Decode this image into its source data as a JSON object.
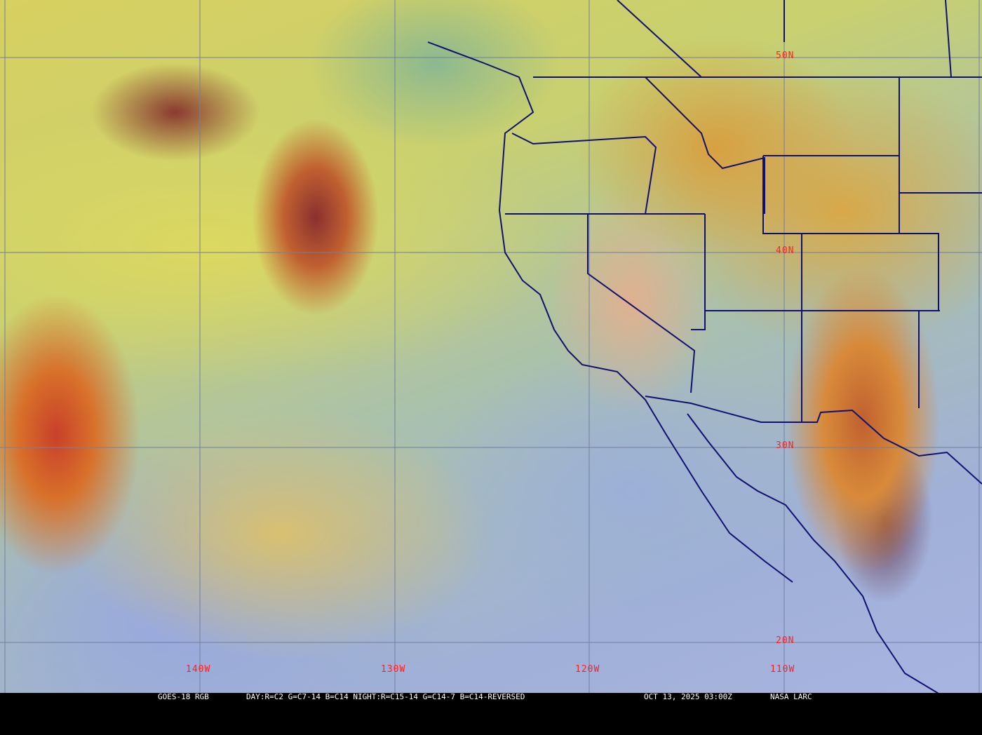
{
  "map": {
    "latitude_labels": [
      "50N",
      "40N",
      "30N",
      "20N"
    ],
    "longitude_labels": [
      "140W",
      "130W",
      "120W",
      "110W"
    ],
    "grid_color": "#7080a0",
    "border_color": "#101070",
    "label_color": "#ff2020"
  },
  "caption": {
    "satellite": "GOES-18 RGB",
    "recipe": "DAY:R=C2 G=C7-14 B=C14 NIGHT:R=C15-14 G=C14-7 B=C14-REVERSED",
    "timestamp": "OCT 13, 2025 03:00Z",
    "source": "NASA LARC"
  }
}
